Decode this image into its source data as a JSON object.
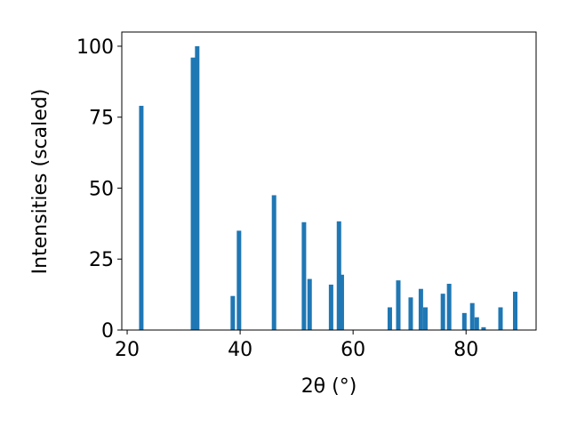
{
  "chart_data": {
    "type": "bar",
    "xlabel": "2θ (°)",
    "ylabel": "Intensities (scaled)",
    "x": [
      22.5,
      31.65,
      32.4,
      38.7,
      39.8,
      46.0,
      51.3,
      52.3,
      56.1,
      57.5,
      58.0,
      66.5,
      68.0,
      70.2,
      72.0,
      72.8,
      75.9,
      77.0,
      79.7,
      81.1,
      81.9,
      83.1,
      86.1,
      88.7
    ],
    "values": [
      79,
      96,
      100,
      12,
      35,
      47.5,
      38,
      18,
      16,
      38.3,
      19.5,
      8,
      17.5,
      11.5,
      14.5,
      8,
      12.8,
      16.3,
      6,
      9.5,
      4.5,
      1,
      8,
      13.5
    ],
    "color": "#1f77b4",
    "xlim": [
      19.05,
      92.4
    ],
    "xticks": [
      20,
      40,
      60,
      80
    ],
    "ylim": [
      0,
      105
    ],
    "yticks": [
      0,
      25,
      50,
      75,
      100
    ]
  }
}
